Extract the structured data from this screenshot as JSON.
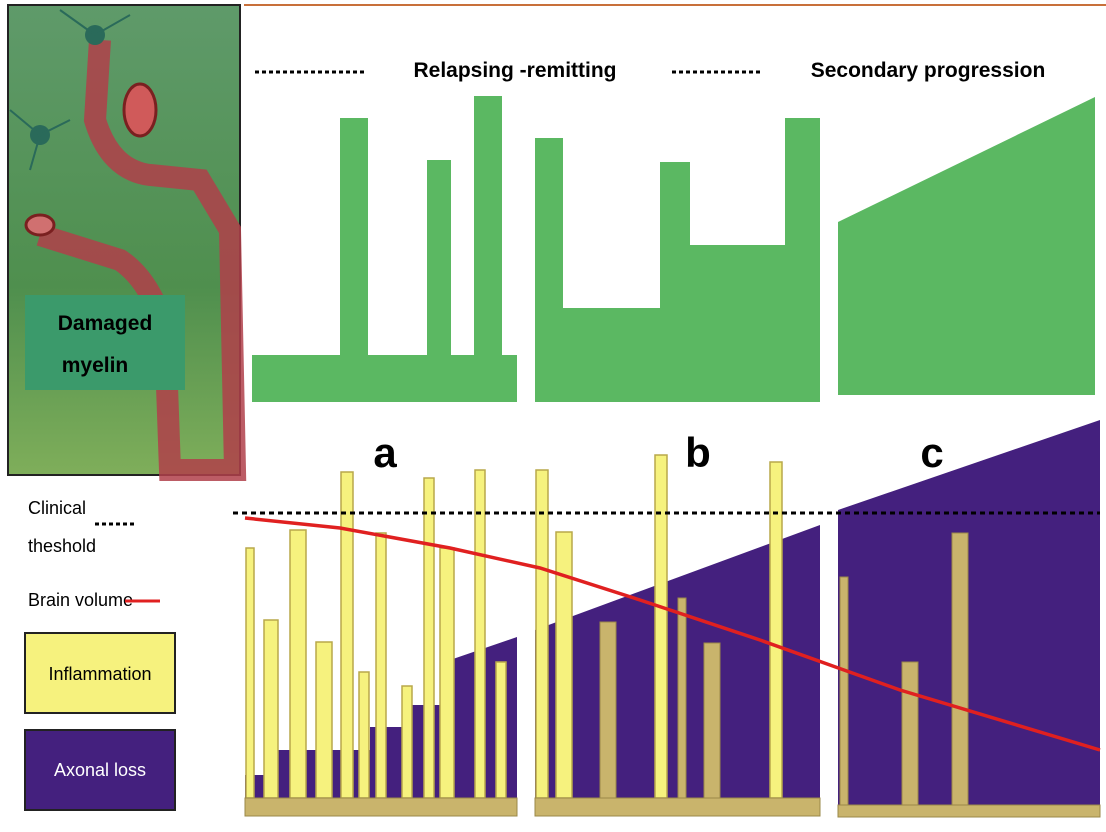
{
  "header": {
    "left_phase": "Relapsing -remitting",
    "right_phase": "Secondary progression"
  },
  "image_label": {
    "line1": "Damaged",
    "line2": "myelin"
  },
  "panels": [
    "a",
    "b",
    "c"
  ],
  "legend": {
    "threshold": {
      "line1": "Clinical",
      "line2": "theshold"
    },
    "brain_volume": "Brain volume",
    "inflammation": "Inflammation",
    "axonal_loss": "Axonal loss"
  }
}
